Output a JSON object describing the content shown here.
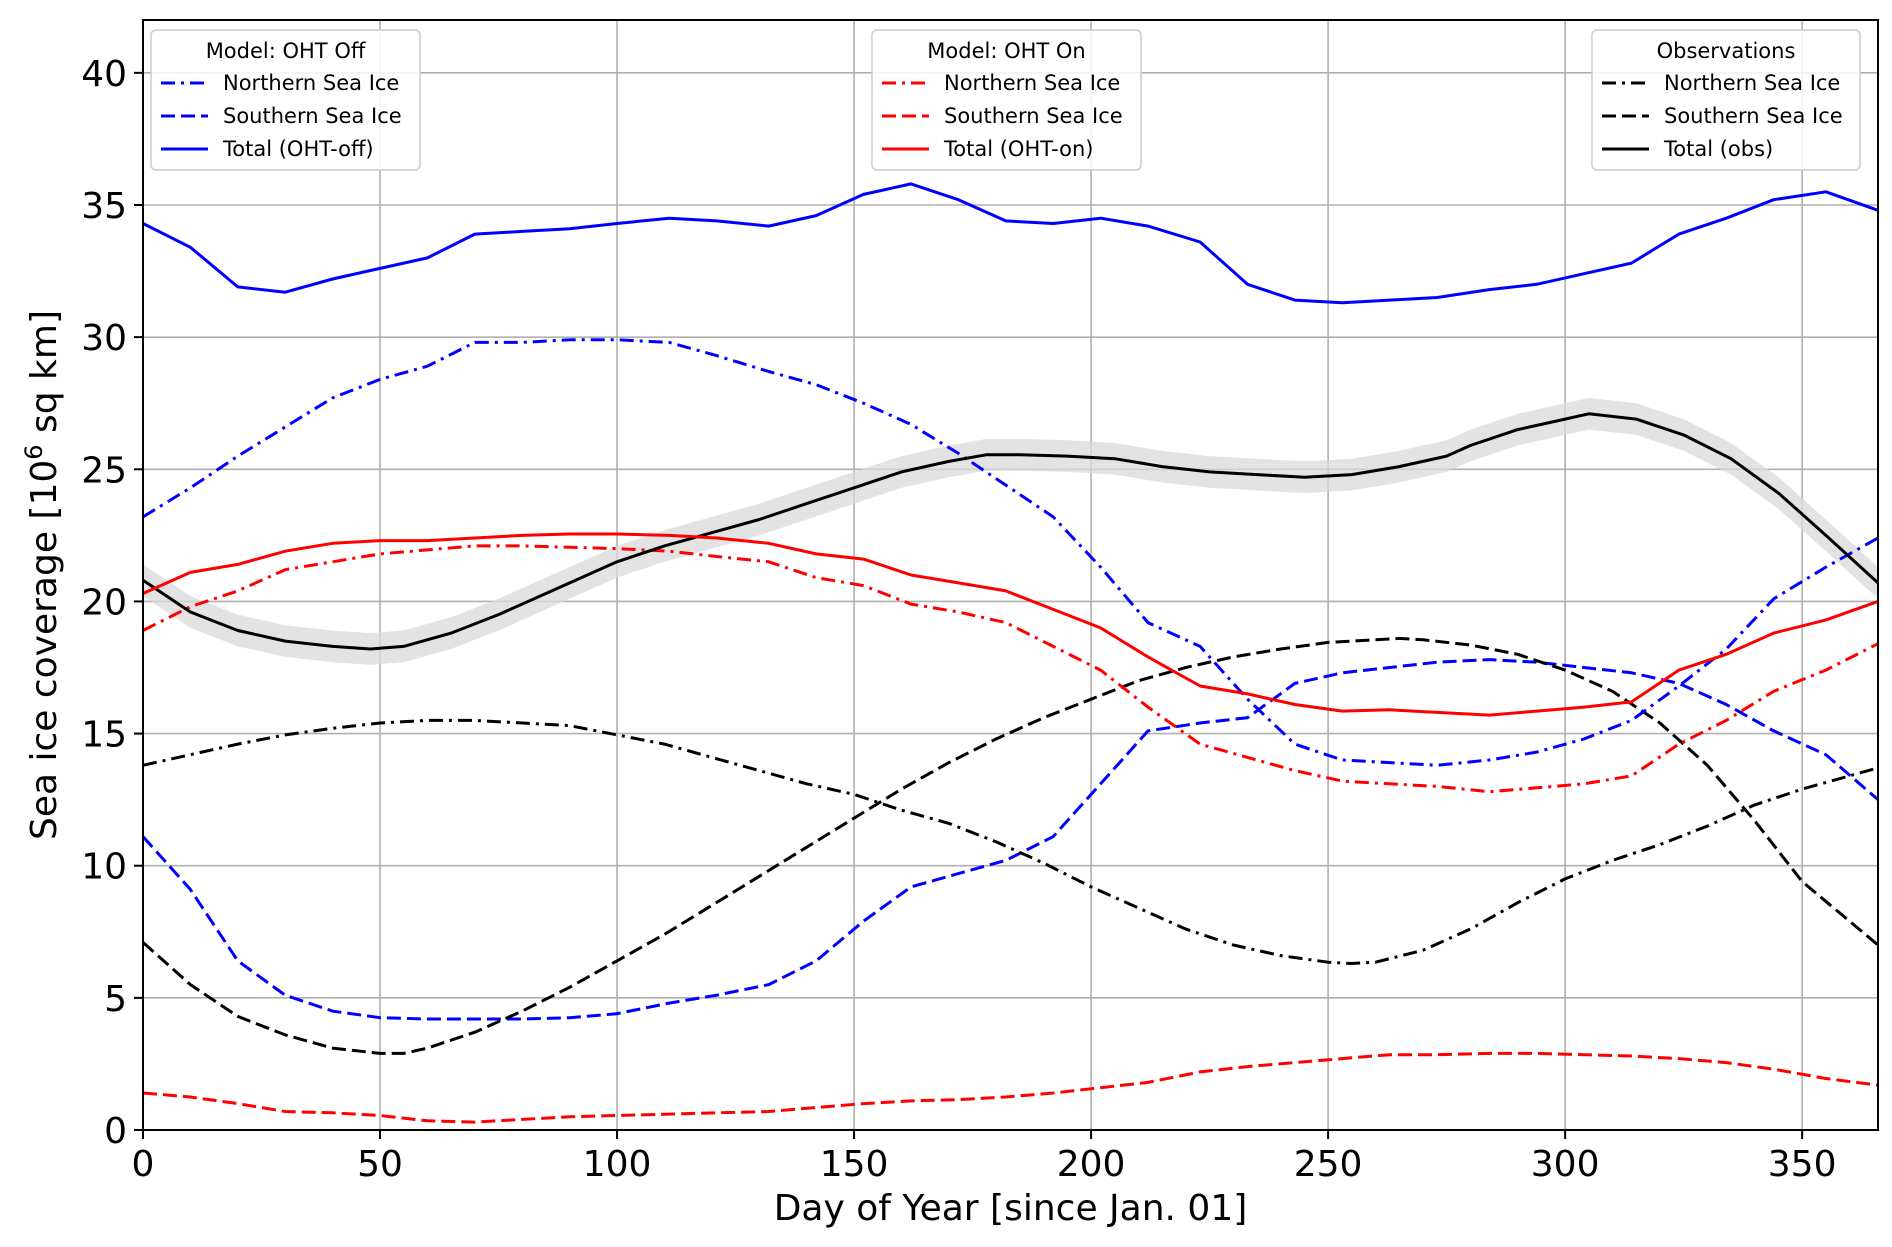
{
  "chart_data": {
    "type": "line",
    "title": "",
    "xlabel": "Day of Year [since Jan. 01]",
    "ylabel_main": "Sea ice coverage [10",
    "ylabel_sup": "6",
    "ylabel_tail": " sq km]",
    "xlim": [
      0,
      366
    ],
    "ylim": [
      0,
      42
    ],
    "grid": true,
    "xticks": [
      0,
      50,
      100,
      150,
      200,
      250,
      300,
      350
    ],
    "yticks": [
      0,
      5,
      10,
      15,
      20,
      25,
      30,
      35,
      40
    ],
    "legends": [
      {
        "title": "Model: OHT Off",
        "placement": "top-left",
        "entries": [
          {
            "label": "Northern Sea Ice",
            "series": "off_north"
          },
          {
            "label": "Southern Sea Ice",
            "series": "off_south"
          },
          {
            "label": "Total (OHT-off)",
            "series": "off_total"
          }
        ]
      },
      {
        "title": "Model: OHT On",
        "placement": "top-center",
        "entries": [
          {
            "label": "Northern Sea Ice",
            "series": "on_north"
          },
          {
            "label": "Southern Sea Ice",
            "series": "on_south"
          },
          {
            "label": "Total (OHT-on)",
            "series": "on_total"
          }
        ]
      },
      {
        "title": "Observations",
        "placement": "top-right",
        "entries": [
          {
            "label": "Northern Sea Ice",
            "series": "obs_north"
          },
          {
            "label": "Southern Sea Ice",
            "series": "obs_south"
          },
          {
            "label": "Total (obs)",
            "series": "obs_total"
          }
        ]
      }
    ],
    "series": [
      {
        "id": "off_total",
        "name": "Total (OHT-off)",
        "color": "#0000ff",
        "style": "solid",
        "x": [
          0,
          10,
          20,
          30,
          40,
          50,
          60,
          70,
          80,
          90,
          100,
          111,
          121,
          132,
          142,
          152,
          162,
          172,
          182,
          192,
          202,
          212,
          223,
          233,
          243,
          253,
          263,
          273,
          284,
          294,
          304,
          314,
          324,
          334,
          344,
          355,
          366
        ],
        "y": [
          34.3,
          33.4,
          31.9,
          31.7,
          32.2,
          32.6,
          33.0,
          33.9,
          34.0,
          34.1,
          34.3,
          34.5,
          34.4,
          34.2,
          34.6,
          35.4,
          35.8,
          35.2,
          34.4,
          34.3,
          34.5,
          34.2,
          33.6,
          32.0,
          31.4,
          31.3,
          31.4,
          31.5,
          31.8,
          32.0,
          32.4,
          32.8,
          33.9,
          34.5,
          35.2,
          35.5,
          34.8
        ]
      },
      {
        "id": "off_north",
        "name": "Northern Sea Ice",
        "color": "#0000ff",
        "style": "dashdot",
        "x": [
          0,
          10,
          20,
          30,
          40,
          50,
          60,
          70,
          80,
          90,
          100,
          111,
          121,
          132,
          142,
          152,
          162,
          172,
          182,
          192,
          202,
          212,
          223,
          233,
          243,
          253,
          263,
          273,
          284,
          294,
          304,
          314,
          324,
          334,
          344,
          355,
          366
        ],
        "y": [
          23.2,
          24.3,
          25.5,
          26.6,
          27.7,
          28.4,
          28.9,
          29.8,
          29.8,
          29.9,
          29.9,
          29.8,
          29.3,
          28.7,
          28.2,
          27.5,
          26.7,
          25.6,
          24.4,
          23.2,
          21.3,
          19.2,
          18.3,
          16.3,
          14.6,
          14.0,
          13.9,
          13.8,
          14.0,
          14.3,
          14.8,
          15.5,
          16.8,
          18.2,
          20.1,
          21.3,
          22.4
        ]
      },
      {
        "id": "off_south",
        "name": "Southern Sea Ice",
        "color": "#0000ff",
        "style": "dashed",
        "x": [
          0,
          10,
          20,
          30,
          40,
          50,
          60,
          70,
          80,
          90,
          100,
          111,
          121,
          132,
          142,
          152,
          162,
          172,
          182,
          192,
          202,
          212,
          223,
          233,
          243,
          253,
          263,
          273,
          284,
          294,
          304,
          314,
          324,
          334,
          344,
          355,
          366
        ],
        "y": [
          11.1,
          9.1,
          6.4,
          5.1,
          4.5,
          4.25,
          4.2,
          4.2,
          4.2,
          4.25,
          4.4,
          4.8,
          5.1,
          5.5,
          6.4,
          7.9,
          9.2,
          9.7,
          10.2,
          11.1,
          13.1,
          15.1,
          15.4,
          15.6,
          16.9,
          17.3,
          17.5,
          17.7,
          17.8,
          17.7,
          17.5,
          17.3,
          16.9,
          16.1,
          15.1,
          14.2,
          12.5
        ]
      },
      {
        "id": "on_total",
        "name": "Total (OHT-on)",
        "color": "#ff0000",
        "style": "solid",
        "x": [
          0,
          10,
          20,
          30,
          40,
          50,
          60,
          70,
          80,
          90,
          100,
          111,
          121,
          132,
          142,
          152,
          162,
          172,
          182,
          192,
          202,
          212,
          223,
          233,
          243,
          253,
          263,
          273,
          284,
          294,
          304,
          314,
          324,
          334,
          344,
          355,
          366
        ],
        "y": [
          20.3,
          21.1,
          21.4,
          21.9,
          22.2,
          22.3,
          22.3,
          22.4,
          22.5,
          22.55,
          22.55,
          22.5,
          22.4,
          22.2,
          21.8,
          21.6,
          21.0,
          20.7,
          20.4,
          19.7,
          19.0,
          17.9,
          16.8,
          16.5,
          16.1,
          15.85,
          15.9,
          15.8,
          15.7,
          15.85,
          16.0,
          16.2,
          17.4,
          18.0,
          18.8,
          19.3,
          20.0
        ]
      },
      {
        "id": "on_north",
        "name": "Northern Sea Ice",
        "color": "#ff0000",
        "style": "dashdot",
        "x": [
          0,
          10,
          20,
          30,
          40,
          50,
          60,
          70,
          80,
          90,
          100,
          111,
          121,
          132,
          142,
          152,
          162,
          172,
          182,
          192,
          202,
          212,
          223,
          233,
          243,
          253,
          263,
          273,
          284,
          294,
          304,
          314,
          324,
          334,
          344,
          355,
          366
        ],
        "y": [
          18.9,
          19.8,
          20.4,
          21.2,
          21.5,
          21.8,
          21.95,
          22.1,
          22.1,
          22.05,
          22.0,
          21.9,
          21.7,
          21.5,
          20.9,
          20.6,
          19.9,
          19.6,
          19.2,
          18.3,
          17.4,
          16.0,
          14.6,
          14.1,
          13.6,
          13.2,
          13.1,
          13.0,
          12.8,
          12.95,
          13.1,
          13.4,
          14.6,
          15.5,
          16.6,
          17.4,
          18.4
        ]
      },
      {
        "id": "on_south",
        "name": "Southern Sea Ice",
        "color": "#ff0000",
        "style": "dashed",
        "x": [
          0,
          10,
          20,
          30,
          40,
          50,
          60,
          70,
          80,
          90,
          100,
          111,
          121,
          132,
          142,
          152,
          162,
          172,
          182,
          192,
          202,
          212,
          223,
          233,
          243,
          253,
          263,
          273,
          284,
          294,
          304,
          314,
          324,
          334,
          344,
          355,
          366
        ],
        "y": [
          1.4,
          1.25,
          1.0,
          0.7,
          0.65,
          0.55,
          0.35,
          0.3,
          0.4,
          0.5,
          0.55,
          0.6,
          0.65,
          0.7,
          0.85,
          1.0,
          1.1,
          1.15,
          1.25,
          1.4,
          1.6,
          1.8,
          2.2,
          2.4,
          2.55,
          2.7,
          2.85,
          2.85,
          2.9,
          2.9,
          2.85,
          2.8,
          2.7,
          2.55,
          2.3,
          1.95,
          1.7
        ]
      },
      {
        "id": "obs_total",
        "name": "Total (obs)",
        "color": "#000000",
        "style": "solid",
        "band_halfwidth": 0.6,
        "x": [
          0,
          10,
          20,
          30,
          40,
          48,
          55,
          65,
          75,
          85,
          100,
          110,
          120,
          130,
          140,
          150,
          160,
          170,
          178,
          185,
          195,
          205,
          215,
          225,
          235,
          245,
          255,
          265,
          275,
          280,
          290,
          300,
          305,
          315,
          325,
          335,
          345,
          355,
          366
        ],
        "y": [
          20.8,
          19.6,
          18.9,
          18.5,
          18.3,
          18.2,
          18.3,
          18.8,
          19.5,
          20.3,
          21.5,
          22.1,
          22.6,
          23.1,
          23.7,
          24.3,
          24.9,
          25.3,
          25.55,
          25.55,
          25.5,
          25.4,
          25.1,
          24.9,
          24.8,
          24.7,
          24.8,
          25.1,
          25.5,
          25.9,
          26.5,
          26.9,
          27.1,
          26.9,
          26.3,
          25.4,
          24.1,
          22.5,
          20.7
        ]
      },
      {
        "id": "obs_north",
        "name": "Northern Sea Ice",
        "color": "#000000",
        "style": "dashdot",
        "x": [
          0,
          10,
          20,
          30,
          40,
          50,
          60,
          70,
          80,
          90,
          100,
          110,
          120,
          130,
          140,
          150,
          160,
          170,
          180,
          190,
          200,
          210,
          220,
          230,
          240,
          250,
          255,
          260,
          270,
          280,
          290,
          300,
          310,
          320,
          330,
          340,
          350,
          366
        ],
        "y": [
          13.8,
          14.2,
          14.6,
          14.95,
          15.2,
          15.4,
          15.5,
          15.5,
          15.4,
          15.3,
          14.95,
          14.6,
          14.1,
          13.6,
          13.1,
          12.7,
          12.1,
          11.6,
          10.9,
          10.1,
          9.2,
          8.4,
          7.6,
          7.0,
          6.6,
          6.35,
          6.3,
          6.35,
          6.8,
          7.6,
          8.6,
          9.5,
          10.2,
          10.8,
          11.5,
          12.3,
          12.9,
          13.7
        ]
      },
      {
        "id": "obs_south",
        "name": "Southern Sea Ice",
        "color": "#000000",
        "style": "dashed",
        "x": [
          0,
          10,
          20,
          30,
          40,
          50,
          55,
          60,
          70,
          80,
          90,
          100,
          110,
          120,
          130,
          140,
          150,
          160,
          170,
          180,
          190,
          200,
          210,
          220,
          230,
          240,
          250,
          260,
          265,
          270,
          280,
          290,
          300,
          310,
          320,
          330,
          340,
          350,
          366
        ],
        "y": [
          7.1,
          5.5,
          4.3,
          3.6,
          3.1,
          2.9,
          2.9,
          3.1,
          3.7,
          4.5,
          5.4,
          6.4,
          7.4,
          8.5,
          9.6,
          10.7,
          11.8,
          12.9,
          13.9,
          14.8,
          15.6,
          16.3,
          17.0,
          17.5,
          17.9,
          18.2,
          18.45,
          18.55,
          18.6,
          18.55,
          18.35,
          18.0,
          17.4,
          16.6,
          15.4,
          13.8,
          11.7,
          9.4,
          7.0
        ]
      }
    ]
  }
}
